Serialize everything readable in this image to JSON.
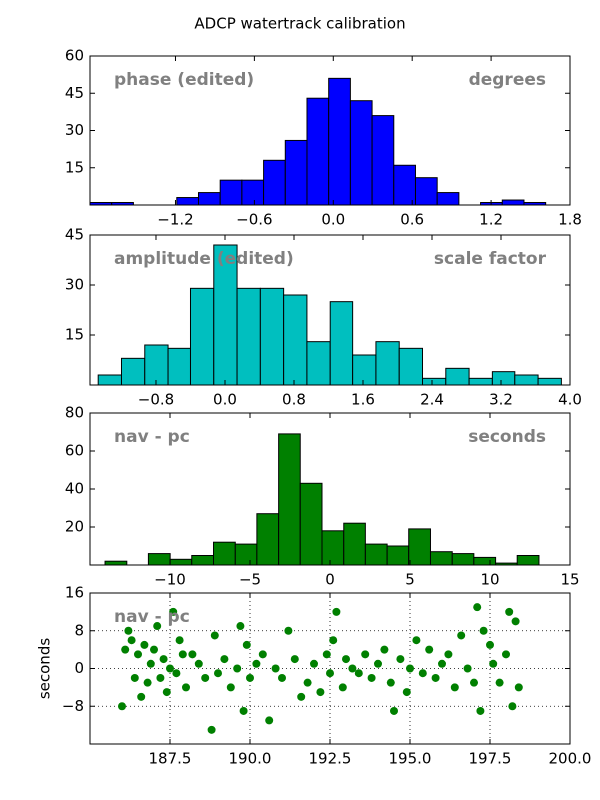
{
  "title": "ADCP watertrack calibration",
  "chart_data": [
    {
      "type": "histogram",
      "annotations": [
        "phase (edited)",
        "degrees"
      ],
      "color": "#0000ff",
      "bins": [
        -1.85,
        -1.685,
        -1.52,
        -1.355,
        -1.19,
        -1.025,
        -0.86,
        -0.695,
        -0.53,
        -0.365,
        -0.2,
        -0.035,
        0.13,
        0.295,
        0.46,
        0.625,
        0.79,
        0.955,
        1.12,
        1.285,
        1.45,
        1.615
      ],
      "values": [
        1,
        1,
        0,
        0,
        3,
        5,
        10,
        10,
        18,
        26,
        43,
        51,
        42,
        36,
        16,
        11,
        5,
        0,
        1,
        2,
        1
      ],
      "xlim": [
        -1.85,
        1.8
      ],
      "ylim": [
        0,
        60
      ],
      "xticks": [
        {
          "value": -1.2,
          "label": "−1.2"
        },
        {
          "value": -0.6,
          "label": "−0.6"
        },
        {
          "value": 0,
          "label": "0.0"
        },
        0.6,
        1.2,
        1.8
      ],
      "yticks": [
        15,
        30,
        45,
        60
      ]
    },
    {
      "type": "histogram",
      "annotations": [
        "amplitude (edited)",
        "scale factor"
      ],
      "color": "#00bfbf",
      "bins": [
        -1.47,
        -1.2,
        -0.93,
        -0.66,
        -0.4,
        -0.13,
        0.14,
        0.41,
        0.68,
        0.95,
        1.22,
        1.48,
        1.75,
        2.02,
        2.29,
        2.56,
        2.83,
        3.1,
        3.36,
        3.63,
        3.9
      ],
      "values": [
        3,
        8,
        12,
        11,
        29,
        42,
        29,
        29,
        27,
        13,
        25,
        9,
        13,
        11,
        2,
        5,
        2,
        4,
        3,
        2
      ],
      "xlim": [
        -1.565,
        4.0
      ],
      "ylim": [
        0,
        45
      ],
      "xticks": [
        {
          "value": -0.8,
          "label": "−0.8"
        },
        {
          "value": 0,
          "label": "0.0"
        },
        0.8,
        1.6,
        2.4,
        3.2,
        {
          "value": 4,
          "label": "4.0"
        }
      ],
      "yticks": [
        15,
        30,
        45
      ]
    },
    {
      "type": "histogram",
      "annotations": [
        "nav - pc",
        "seconds"
      ],
      "color": "#008000",
      "bins": [
        -14.06,
        -12.7,
        -11.35,
        -9.99,
        -8.64,
        -7.28,
        -5.92,
        -4.57,
        -3.21,
        -1.86,
        -0.5,
        0.86,
        2.21,
        3.57,
        4.92,
        6.28,
        7.64,
        8.99,
        10.35,
        11.7,
        13.06
      ],
      "values": [
        2,
        0,
        6,
        3,
        5,
        12,
        11,
        27,
        69,
        43,
        18,
        22,
        11,
        10,
        19,
        7,
        6,
        4,
        1,
        5
      ],
      "xlim": [
        -15,
        15
      ],
      "ylim": [
        0,
        80
      ],
      "xticks": [
        {
          "value": -10,
          "label": "−10"
        },
        {
          "value": -5,
          "label": "−5"
        },
        0,
        5,
        10,
        15
      ],
      "yticks": [
        20,
        40,
        60,
        80
      ]
    },
    {
      "type": "scatter",
      "annotations": [
        "nav - pc"
      ],
      "color": "#008000",
      "ylabel": "seconds",
      "grid": true,
      "x": [
        186.0,
        186.1,
        186.2,
        186.3,
        186.4,
        186.5,
        186.6,
        186.7,
        186.8,
        186.9,
        187.0,
        187.1,
        187.2,
        187.3,
        187.4,
        187.5,
        187.6,
        187.7,
        187.8,
        187.9,
        188.0,
        188.2,
        188.4,
        188.6,
        188.8,
        188.9,
        189.0,
        189.2,
        189.4,
        189.6,
        189.7,
        189.8,
        189.9,
        190.0,
        190.2,
        190.4,
        190.6,
        190.8,
        191.0,
        191.2,
        191.4,
        191.6,
        191.8,
        192.0,
        192.2,
        192.4,
        192.5,
        192.6,
        192.7,
        192.9,
        193.0,
        193.2,
        193.4,
        193.6,
        193.8,
        194.0,
        194.2,
        194.4,
        194.5,
        194.7,
        194.9,
        195.0,
        195.2,
        195.4,
        195.6,
        195.8,
        196.0,
        196.2,
        196.4,
        196.6,
        196.8,
        197.0,
        197.1,
        197.2,
        197.3,
        197.5,
        197.6,
        197.8,
        198.0,
        198.1,
        198.2,
        198.3,
        198.4
      ],
      "values": [
        -8,
        4,
        8,
        6,
        -2,
        3,
        -6,
        5,
        -3,
        1,
        4,
        9,
        -2,
        2,
        -5,
        0,
        12,
        -1,
        6,
        3,
        -4,
        3,
        1,
        -2,
        -13,
        7,
        -1,
        2,
        -4,
        0,
        9,
        -9,
        5,
        -2,
        1,
        3,
        -11,
        0,
        -2,
        8,
        2,
        -6,
        -3,
        1,
        -5,
        3,
        -1,
        6,
        12,
        -4,
        2,
        0,
        -1,
        3,
        -2,
        1,
        4,
        -3,
        -9,
        2,
        -5,
        0,
        6,
        -1,
        4,
        -2,
        1,
        3,
        -4,
        7,
        0,
        -3,
        13,
        -9,
        8,
        5,
        1,
        -3,
        3,
        12,
        -8,
        10,
        -4
      ],
      "xlim": [
        185,
        200
      ],
      "ylim": [
        -16,
        16
      ],
      "xticks": [
        187.5,
        {
          "value": 190,
          "label": "190.0"
        },
        192.5,
        {
          "value": 195,
          "label": "195.0"
        },
        197.5,
        {
          "value": 200,
          "label": "200.0"
        }
      ],
      "yticks": [
        {
          "value": -8,
          "label": "−8"
        },
        0,
        8,
        16
      ]
    }
  ]
}
